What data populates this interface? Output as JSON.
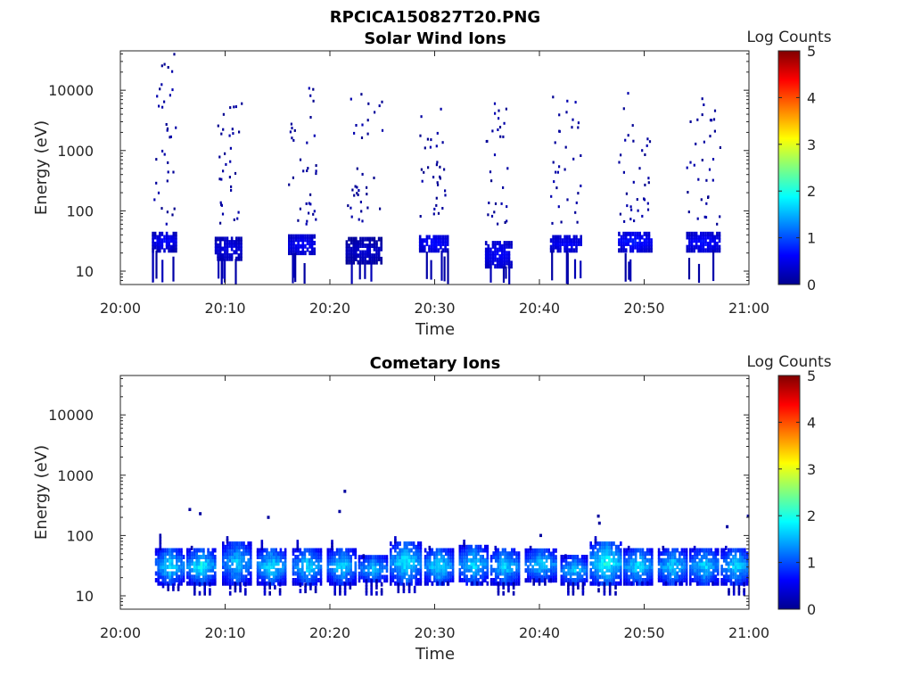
{
  "figure_title": "RPCICA150827T20.PNG",
  "chart_data": [
    {
      "type": "heatmap",
      "title": "Solar Wind Ions",
      "xlabel": "Time",
      "ylabel": "Energy (eV)",
      "x_ticks": [
        "20:00",
        "20:10",
        "20:20",
        "20:30",
        "20:40",
        "20:50",
        "21:00"
      ],
      "x_range_minutes": [
        0,
        60
      ],
      "y_scale": "log",
      "y_ticks": [
        10,
        100,
        1000,
        10000
      ],
      "y_tick_labels": [
        "10",
        "100",
        "1000",
        "10000"
      ],
      "ylim": [
        6,
        45000
      ],
      "colorbar": {
        "label": "Log Counts",
        "min": 0,
        "max": 5,
        "ticks": [
          "0",
          "1",
          "2",
          "3",
          "4",
          "5"
        ],
        "colormap": "jet"
      },
      "bursts": [
        {
          "t": [
            3.0,
            5.2
          ],
          "core_e": [
            22,
            45
          ],
          "core_level": [
            0.2,
            0.8
          ],
          "scatter_e": [
            60,
            40000
          ],
          "n_scatter": 34,
          "tail_e": [
            6,
            20
          ]
        },
        {
          "t": [
            9.0,
            11.5
          ],
          "core_e": [
            16,
            36
          ],
          "core_level": [
            0.2,
            0.6
          ],
          "scatter_e": [
            60,
            6000
          ],
          "n_scatter": 32,
          "tail_e": [
            6,
            14
          ]
        },
        {
          "t": [
            16.0,
            18.6
          ],
          "core_e": [
            20,
            38
          ],
          "core_level": [
            0.3,
            0.7
          ],
          "scatter_e": [
            60,
            13000
          ],
          "n_scatter": 34,
          "tail_e": [
            6,
            16
          ]
        },
        {
          "t": [
            21.5,
            25.0
          ],
          "core_e": [
            14,
            34
          ],
          "core_level": [
            0.1,
            0.5
          ],
          "scatter_e": [
            60,
            9000
          ],
          "n_scatter": 34,
          "tail_e": [
            6,
            12
          ]
        },
        {
          "t": [
            28.5,
            31.2
          ],
          "core_e": [
            22,
            40
          ],
          "core_level": [
            0.3,
            0.8
          ],
          "scatter_e": [
            80,
            6000
          ],
          "n_scatter": 32,
          "tail_e": [
            6,
            14
          ]
        },
        {
          "t": [
            34.8,
            37.3
          ],
          "core_e": [
            12,
            30
          ],
          "core_level": [
            0.3,
            0.7
          ],
          "scatter_e": [
            60,
            6000
          ],
          "n_scatter": 28,
          "tail_e": [
            6,
            12
          ]
        },
        {
          "t": [
            41.0,
            44.0
          ],
          "core_e": [
            22,
            38
          ],
          "core_level": [
            0.3,
            0.7
          ],
          "scatter_e": [
            60,
            9000
          ],
          "n_scatter": 32,
          "tail_e": [
            6,
            14
          ]
        },
        {
          "t": [
            47.5,
            50.6
          ],
          "core_e": [
            22,
            45
          ],
          "core_level": [
            0.3,
            0.9
          ],
          "scatter_e": [
            60,
            11000
          ],
          "n_scatter": 34,
          "tail_e": [
            6,
            16
          ]
        },
        {
          "t": [
            54.0,
            57.2
          ],
          "core_e": [
            22,
            42
          ],
          "core_level": [
            0.3,
            0.8
          ],
          "scatter_e": [
            60,
            11000
          ],
          "n_scatter": 34,
          "tail_e": [
            6,
            14
          ]
        }
      ]
    },
    {
      "type": "heatmap",
      "title": "Cometary Ions",
      "xlabel": "Time",
      "ylabel": "Energy (eV)",
      "x_ticks": [
        "20:00",
        "20:10",
        "20:20",
        "20:30",
        "20:40",
        "20:50",
        "21:00"
      ],
      "x_range_minutes": [
        0,
        60
      ],
      "y_scale": "log",
      "y_ticks": [
        10,
        100,
        1000,
        10000
      ],
      "y_tick_labels": [
        "10",
        "100",
        "1000",
        "10000"
      ],
      "ylim": [
        6,
        45000
      ],
      "colorbar": {
        "label": "Log Counts",
        "min": 0,
        "max": 5,
        "ticks": [
          "0",
          "1",
          "2",
          "3",
          "4",
          "5"
        ],
        "colormap": "jet"
      },
      "bursts": [
        {
          "t": [
            3.3,
            6.0
          ],
          "core_e": [
            16,
            62
          ],
          "core_level": [
            0.4,
            2.1
          ],
          "tail_top": 110,
          "tail_bottom": 13
        },
        {
          "t": [
            6.3,
            9.0
          ],
          "core_e": [
            16,
            62
          ],
          "core_level": [
            0.4,
            2.2
          ],
          "tail_top": 62,
          "tail_bottom": 11
        },
        {
          "t": [
            9.7,
            12.4
          ],
          "core_e": [
            16,
            80
          ],
          "core_level": [
            0.4,
            1.9
          ],
          "tail_top": 90,
          "tail_bottom": 11
        },
        {
          "t": [
            13.0,
            15.7
          ],
          "core_e": [
            16,
            62
          ],
          "core_level": [
            0.4,
            2.1
          ],
          "tail_top": 80,
          "tail_bottom": 11
        },
        {
          "t": [
            16.4,
            19.1
          ],
          "core_e": [
            16,
            62
          ],
          "core_level": [
            0.4,
            2.0
          ],
          "tail_top": 80,
          "tail_bottom": 12
        },
        {
          "t": [
            19.7,
            22.4
          ],
          "core_e": [
            16,
            62
          ],
          "core_level": [
            0.4,
            2.0
          ],
          "tail_top": 80,
          "tail_bottom": 11
        },
        {
          "t": [
            22.7,
            25.4
          ],
          "core_e": [
            18,
            45
          ],
          "core_level": [
            0.5,
            1.8
          ],
          "tail_top": 45,
          "tail_bottom": 11
        },
        {
          "t": [
            25.7,
            28.6
          ],
          "core_e": [
            16,
            80
          ],
          "core_level": [
            0.4,
            2.2
          ],
          "tail_top": 100,
          "tail_bottom": 12
        },
        {
          "t": [
            29.0,
            31.7
          ],
          "core_e": [
            16,
            62
          ],
          "core_level": [
            0.4,
            2.1
          ],
          "tail_top": 62,
          "tail_bottom": 16
        },
        {
          "t": [
            32.3,
            35.0
          ],
          "core_e": [
            16,
            70
          ],
          "core_level": [
            0.4,
            2.0
          ],
          "tail_top": 80,
          "tail_bottom": 16
        },
        {
          "t": [
            35.3,
            38.0
          ],
          "core_e": [
            16,
            62
          ],
          "core_level": [
            0.4,
            2.0
          ],
          "tail_top": 62,
          "tail_bottom": 11
        },
        {
          "t": [
            38.6,
            41.6
          ],
          "core_e": [
            18,
            62
          ],
          "core_level": [
            0.4,
            1.9
          ],
          "tail_top": 62,
          "tail_bottom": 16
        },
        {
          "t": [
            42.0,
            44.6
          ],
          "core_e": [
            16,
            45
          ],
          "core_level": [
            0.4,
            1.9
          ],
          "tail_top": 45,
          "tail_bottom": 11
        },
        {
          "t": [
            44.8,
            47.8
          ],
          "core_e": [
            16,
            80
          ],
          "core_level": [
            0.5,
            2.3
          ],
          "tail_top": 100,
          "tail_bottom": 11
        },
        {
          "t": [
            48.0,
            50.8
          ],
          "core_e": [
            16,
            62
          ],
          "core_level": [
            0.4,
            2.1
          ],
          "tail_top": 62,
          "tail_bottom": 16
        },
        {
          "t": [
            51.3,
            54.0
          ],
          "core_e": [
            16,
            62
          ],
          "core_level": [
            0.4,
            2.0
          ],
          "tail_top": 62,
          "tail_bottom": 16
        },
        {
          "t": [
            54.3,
            57.0
          ],
          "core_e": [
            16,
            62
          ],
          "core_level": [
            0.4,
            2.0
          ],
          "tail_top": 62,
          "tail_bottom": 16
        },
        {
          "t": [
            57.3,
            60.0
          ],
          "core_e": [
            16,
            62
          ],
          "core_level": [
            0.4,
            2.0
          ],
          "tail_top": 62,
          "tail_bottom": 11
        }
      ],
      "isolated_points": [
        {
          "t": 6.5,
          "e": 270
        },
        {
          "t": 7.5,
          "e": 230
        },
        {
          "t": 14.0,
          "e": 200
        },
        {
          "t": 20.8,
          "e": 250
        },
        {
          "t": 21.3,
          "e": 540
        },
        {
          "t": 40.0,
          "e": 100
        },
        {
          "t": 45.5,
          "e": 210
        },
        {
          "t": 45.6,
          "e": 160
        },
        {
          "t": 57.8,
          "e": 140
        },
        {
          "t": 59.8,
          "e": 210
        }
      ]
    }
  ]
}
